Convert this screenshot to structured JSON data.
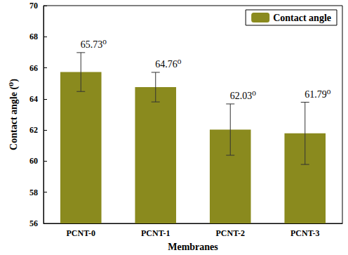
{
  "chart_data": {
    "type": "bar",
    "x_label": "Membranes",
    "y_label": "Contact angle (⁰)",
    "categories": [
      "PCNT-0",
      "PCNT-1",
      "PCNT-2",
      "PCNT-3"
    ],
    "series": [
      {
        "name": "Contact angle",
        "color": "#8a8a1e",
        "values": [
          65.73,
          64.76,
          62.03,
          61.79
        ],
        "value_labels": [
          "65.73⁰",
          "64.76⁰",
          "62.03⁰",
          "61.79⁰"
        ],
        "errors": [
          1.25,
          0.95,
          1.65,
          2.0
        ]
      }
    ],
    "ylim": [
      56,
      70
    ],
    "yticks": [
      56,
      58,
      60,
      62,
      64,
      66,
      68,
      70
    ],
    "grid": false,
    "legend": "upper right",
    "data_labels": true
  }
}
